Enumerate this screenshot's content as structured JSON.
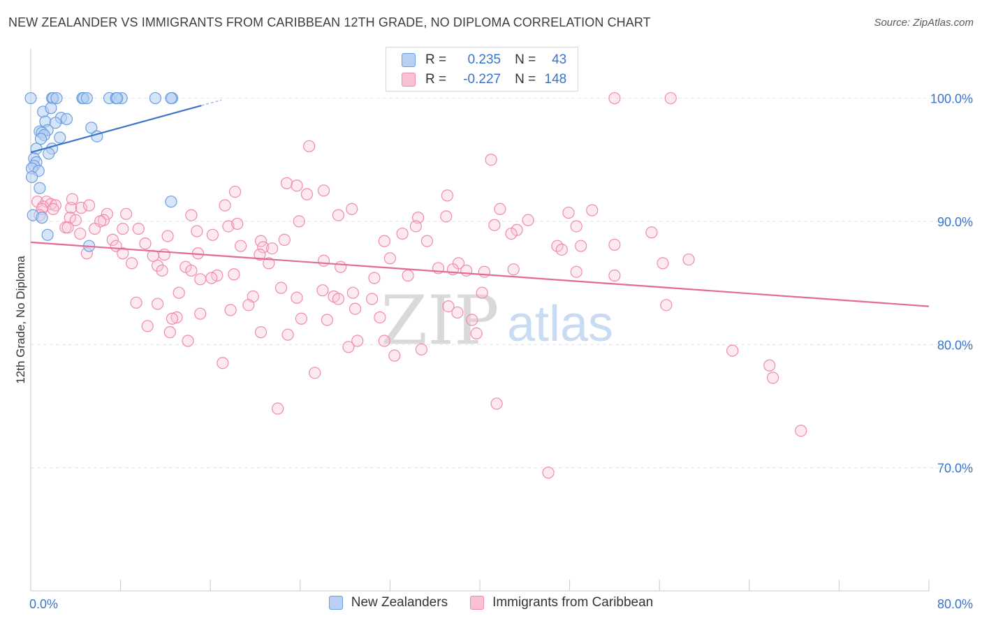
{
  "header": {
    "title": "NEW ZEALANDER VS IMMIGRANTS FROM CARIBBEAN 12TH GRADE, NO DIPLOMA CORRELATION CHART",
    "source": "Source: ZipAtlas.com"
  },
  "legend": {
    "r_label": "R =",
    "n_label": "N =",
    "rows": [
      {
        "r": "0.235",
        "n": "43",
        "color": "#6b9ee0"
      },
      {
        "r": "-0.227",
        "n": "148",
        "color": "#f08aab"
      }
    ]
  },
  "watermark": {
    "zip": "ZIP",
    "atlas": "atlas"
  },
  "colors": {
    "blue": "#3a74c9",
    "pink": "#e26c97",
    "blue_fill": "#b7d0f3",
    "pink_fill": "#f8c2d3"
  },
  "chart_data": {
    "type": "scatter",
    "title": "NEW ZEALANDER VS IMMIGRANTS FROM CARIBBEAN 12TH GRADE, NO DIPLOMA CORRELATION CHART",
    "xlabel": "",
    "ylabel": "12th Grade, No Diploma",
    "xlim": [
      0,
      80
    ],
    "ylim": [
      60,
      104
    ],
    "x_tick_labels": [
      "0.0%",
      "80.0%"
    ],
    "y_ticks": [
      70,
      80,
      90,
      100
    ],
    "y_tick_labels": [
      "70.0%",
      "80.0%",
      "90.0%",
      "100.0%"
    ],
    "grid": true,
    "series": [
      {
        "name": "New Zealanders",
        "color": "#6b9ee0",
        "points": [
          [
            1.9,
            100
          ],
          [
            2.0,
            100
          ],
          [
            2.3,
            100
          ],
          [
            4.6,
            100
          ],
          [
            4.7,
            100
          ],
          [
            5.0,
            100
          ],
          [
            7.0,
            100
          ],
          [
            8.1,
            100
          ],
          [
            11.1,
            100
          ],
          [
            12.6,
            100
          ],
          [
            0.0,
            100
          ],
          [
            12.5,
            100
          ],
          [
            7.6,
            100
          ],
          [
            7.7,
            100
          ],
          [
            1.1,
            98.9
          ],
          [
            1.8,
            99.2
          ],
          [
            2.7,
            98.4
          ],
          [
            3.2,
            98.3
          ],
          [
            1.3,
            98.1
          ],
          [
            2.2,
            98.0
          ],
          [
            5.4,
            97.6
          ],
          [
            1.5,
            97.4
          ],
          [
            0.8,
            97.3
          ],
          [
            1.0,
            97.2
          ],
          [
            1.2,
            97.0
          ],
          [
            2.6,
            96.8
          ],
          [
            5.9,
            96.9
          ],
          [
            0.9,
            96.7
          ],
          [
            0.5,
            95.9
          ],
          [
            1.9,
            95.9
          ],
          [
            1.6,
            95.5
          ],
          [
            0.3,
            95.1
          ],
          [
            0.5,
            94.8
          ],
          [
            0.3,
            94.5
          ],
          [
            0.1,
            94.3
          ],
          [
            0.7,
            94.1
          ],
          [
            0.1,
            93.6
          ],
          [
            0.8,
            92.7
          ],
          [
            12.5,
            91.6
          ],
          [
            0.2,
            90.5
          ],
          [
            1.0,
            90.3
          ],
          [
            1.5,
            88.9
          ],
          [
            5.2,
            88.0
          ]
        ],
        "trend": {
          "x": [
            0.0,
            15.2
          ],
          "y": [
            95.6,
            99.4
          ],
          "dash_to_x": 17.0
        }
      },
      {
        "name": "Immigrants from Caribbean",
        "color": "#f08aab",
        "points": [
          [
            52.0,
            100
          ],
          [
            57.0,
            100
          ],
          [
            24.8,
            96.1
          ],
          [
            41.0,
            95.0
          ],
          [
            22.8,
            93.1
          ],
          [
            23.7,
            92.9
          ],
          [
            26.1,
            92.5
          ],
          [
            18.2,
            92.4
          ],
          [
            24.6,
            92.2
          ],
          [
            37.1,
            92.1
          ],
          [
            0.6,
            91.6
          ],
          [
            1.4,
            91.6
          ],
          [
            1.8,
            91.4
          ],
          [
            2.2,
            91.3
          ],
          [
            1.1,
            91.2
          ],
          [
            3.6,
            91.1
          ],
          [
            1.0,
            91.0
          ],
          [
            2.0,
            91.0
          ],
          [
            3.7,
            91.8
          ],
          [
            4.5,
            91.1
          ],
          [
            5.2,
            91.3
          ],
          [
            17.3,
            91.3
          ],
          [
            28.6,
            91.0
          ],
          [
            41.8,
            91.0
          ],
          [
            50.0,
            90.9
          ],
          [
            0.8,
            90.5
          ],
          [
            3.5,
            90.3
          ],
          [
            6.8,
            90.6
          ],
          [
            8.5,
            90.6
          ],
          [
            14.3,
            90.5
          ],
          [
            27.4,
            90.5
          ],
          [
            37.0,
            90.4
          ],
          [
            47.9,
            90.7
          ],
          [
            34.5,
            90.3
          ],
          [
            6.5,
            90.1
          ],
          [
            4.0,
            90.1
          ],
          [
            6.2,
            90.0
          ],
          [
            23.9,
            90.0
          ],
          [
            41.3,
            89.7
          ],
          [
            44.3,
            90.1
          ],
          [
            34.3,
            89.6
          ],
          [
            3.1,
            89.5
          ],
          [
            3.3,
            89.5
          ],
          [
            5.7,
            89.4
          ],
          [
            8.2,
            89.4
          ],
          [
            9.6,
            89.4
          ],
          [
            17.6,
            89.6
          ],
          [
            18.4,
            89.8
          ],
          [
            48.6,
            89.6
          ],
          [
            43.3,
            89.3
          ],
          [
            4.4,
            89.0
          ],
          [
            14.8,
            89.2
          ],
          [
            42.8,
            89.0
          ],
          [
            33.1,
            89.0
          ],
          [
            55.3,
            89.1
          ],
          [
            12.2,
            88.8
          ],
          [
            16.2,
            88.9
          ],
          [
            20.5,
            88.4
          ],
          [
            22.6,
            88.5
          ],
          [
            31.5,
            88.4
          ],
          [
            35.3,
            88.4
          ],
          [
            7.3,
            88.5
          ],
          [
            10.2,
            88.2
          ],
          [
            7.6,
            88.0
          ],
          [
            18.7,
            88.0
          ],
          [
            52.0,
            88.1
          ],
          [
            46.9,
            88.0
          ],
          [
            49.0,
            88.0
          ],
          [
            20.7,
            87.9
          ],
          [
            21.5,
            87.8
          ],
          [
            47.3,
            87.7
          ],
          [
            5.0,
            87.4
          ],
          [
            8.2,
            87.4
          ],
          [
            11.9,
            87.3
          ],
          [
            14.9,
            87.4
          ],
          [
            20.4,
            87.3
          ],
          [
            10.9,
            87.2
          ],
          [
            32.0,
            87.0
          ],
          [
            26.1,
            86.8
          ],
          [
            21.2,
            86.6
          ],
          [
            38.1,
            86.6
          ],
          [
            58.6,
            86.9
          ],
          [
            56.3,
            86.6
          ],
          [
            9.0,
            86.6
          ],
          [
            11.3,
            86.4
          ],
          [
            13.8,
            86.3
          ],
          [
            27.6,
            86.3
          ],
          [
            37.6,
            86.1
          ],
          [
            36.3,
            86.2
          ],
          [
            38.8,
            86.0
          ],
          [
            40.4,
            85.9
          ],
          [
            43.0,
            86.1
          ],
          [
            48.6,
            85.9
          ],
          [
            11.7,
            86.0
          ],
          [
            14.3,
            86.0
          ],
          [
            16.6,
            85.6
          ],
          [
            18.1,
            85.7
          ],
          [
            33.6,
            85.6
          ],
          [
            16.1,
            85.4
          ],
          [
            15.1,
            85.3
          ],
          [
            52.0,
            85.6
          ],
          [
            30.6,
            85.4
          ],
          [
            22.3,
            84.6
          ],
          [
            26.0,
            84.4
          ],
          [
            13.2,
            84.2
          ],
          [
            28.7,
            84.2
          ],
          [
            40.2,
            84.2
          ],
          [
            19.8,
            83.9
          ],
          [
            23.7,
            83.8
          ],
          [
            27.0,
            83.9
          ],
          [
            30.4,
            83.7
          ],
          [
            27.4,
            83.7
          ],
          [
            9.4,
            83.4
          ],
          [
            11.3,
            83.3
          ],
          [
            19.4,
            83.2
          ],
          [
            28.9,
            82.9
          ],
          [
            37.2,
            83.1
          ],
          [
            17.8,
            82.8
          ],
          [
            56.6,
            83.2
          ],
          [
            15.1,
            82.5
          ],
          [
            13.0,
            82.2
          ],
          [
            24.1,
            82.1
          ],
          [
            26.4,
            82.0
          ],
          [
            31.1,
            82.2
          ],
          [
            12.6,
            82.1
          ],
          [
            38.0,
            82.6
          ],
          [
            39.3,
            82.0
          ],
          [
            10.4,
            81.5
          ],
          [
            12.4,
            81.0
          ],
          [
            20.5,
            81.0
          ],
          [
            22.9,
            80.8
          ],
          [
            39.7,
            80.9
          ],
          [
            14.0,
            80.3
          ],
          [
            29.1,
            80.3
          ],
          [
            31.5,
            80.3
          ],
          [
            28.3,
            79.8
          ],
          [
            34.8,
            79.6
          ],
          [
            32.4,
            79.1
          ],
          [
            17.1,
            78.5
          ],
          [
            62.5,
            79.5
          ],
          [
            65.8,
            78.3
          ],
          [
            66.1,
            77.3
          ],
          [
            25.3,
            77.7
          ],
          [
            41.5,
            75.2
          ],
          [
            22.0,
            74.8
          ],
          [
            68.6,
            73.0
          ],
          [
            46.1,
            69.6
          ]
        ],
        "trend": {
          "x": [
            0.0,
            80.0
          ],
          "y": [
            88.3,
            83.1
          ]
        }
      }
    ]
  }
}
